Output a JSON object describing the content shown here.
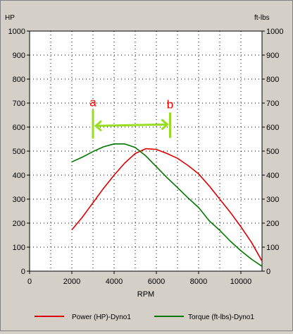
{
  "chart_data": {
    "type": "line",
    "y_left_label": "HP",
    "y_right_label": "ft-lbs",
    "xlabel": "RPM",
    "xlim": [
      0,
      11000
    ],
    "ylim": [
      0,
      1000
    ],
    "x_ticks": [
      "0",
      "2000",
      "4000",
      "6000",
      "8000",
      "10000"
    ],
    "x_tick_values": [
      0,
      2000,
      4000,
      6000,
      8000,
      10000
    ],
    "y_ticks": [
      "0",
      "100",
      "200",
      "300",
      "400",
      "500",
      "600",
      "700",
      "800",
      "900",
      "1000"
    ],
    "y_tick_values": [
      0,
      100,
      200,
      300,
      400,
      500,
      600,
      700,
      800,
      900,
      1000
    ],
    "grid": "dotted",
    "legend_position": "bottom",
    "series": [
      {
        "name": "Power (HP)-Dyno1",
        "color": "#dd0000",
        "x": [
          2000,
          2500,
          3000,
          3500,
          4000,
          4500,
          5000,
          5500,
          6000,
          6500,
          7000,
          7500,
          8000,
          8500,
          9000,
          9500,
          10000,
          10500,
          11000
        ],
        "y": [
          172,
          225,
          285,
          345,
          400,
          450,
          490,
          510,
          507,
          490,
          470,
          440,
          405,
          355,
          300,
          245,
          185,
          120,
          42
        ]
      },
      {
        "name": "Torque (ft-lbs)-Dyno1",
        "color": "#007700",
        "x": [
          2000,
          2500,
          3000,
          3500,
          4000,
          4500,
          5000,
          5500,
          6000,
          6500,
          7000,
          7500,
          8000,
          8500,
          9000,
          9500,
          10000,
          10500,
          11000
        ],
        "y": [
          455,
          475,
          498,
          518,
          530,
          530,
          515,
          480,
          435,
          390,
          348,
          305,
          265,
          210,
          170,
          125,
          85,
          50,
          20
        ]
      }
    ],
    "annotations": {
      "marker_a": {
        "label": "a",
        "color": "#ff0000",
        "x": 3000
      },
      "marker_b": {
        "label": "b",
        "color": "#ff0000",
        "x": 6650
      },
      "arrow": {
        "color": "#99dd22",
        "y": 605
      }
    }
  }
}
